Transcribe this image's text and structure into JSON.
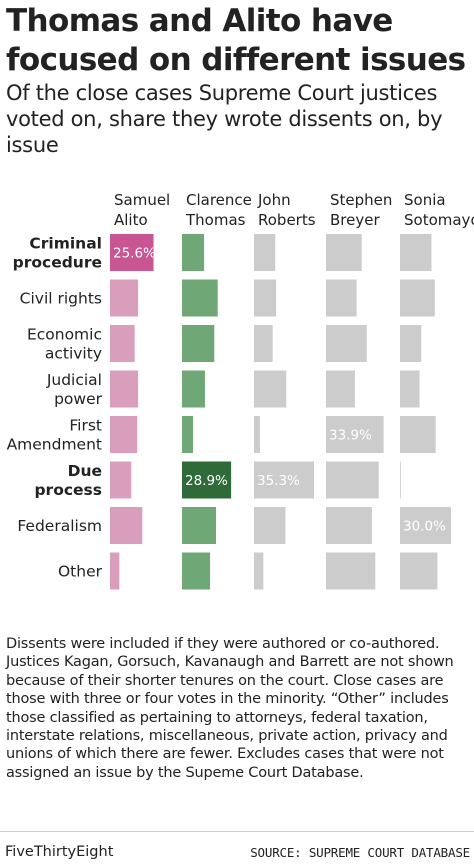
{
  "title": "Thomas and Alito have focused on different issues",
  "subtitle": "Of the close cases Supreme Court justices voted on, share they wrote dissents on, by issue",
  "chart_data": {
    "type": "bar",
    "units": "%",
    "justices": [
      {
        "name": [
          "Samuel",
          "Alito"
        ],
        "color": "#d99ebc",
        "highlight_color": "#c95693"
      },
      {
        "name": [
          "Clarence",
          "Thomas"
        ],
        "color": "#6fa777",
        "highlight_color": "#2f6b38"
      },
      {
        "name": [
          "John",
          "Roberts"
        ],
        "color": "#cccccc",
        "highlight_color": "#cccccc"
      },
      {
        "name": [
          "Stephen",
          "Breyer"
        ],
        "color": "#cccccc",
        "highlight_color": "#cccccc"
      },
      {
        "name": [
          "Sonia",
          "Sotomayor"
        ],
        "color": "#cccccc",
        "highlight_color": "#cccccc"
      }
    ],
    "issues": [
      {
        "label": [
          "Criminal",
          "procedure"
        ],
        "bold": true
      },
      {
        "label": [
          "Civil rights"
        ],
        "bold": false
      },
      {
        "label": [
          "Economic",
          "activity"
        ],
        "bold": false
      },
      {
        "label": [
          "Judicial",
          "power"
        ],
        "bold": false
      },
      {
        "label": [
          "First",
          "Amendment"
        ],
        "bold": false
      },
      {
        "label": [
          "Due",
          "process"
        ],
        "bold": true
      },
      {
        "label": [
          "Federalism"
        ],
        "bold": false
      },
      {
        "label": [
          "Other"
        ],
        "bold": false
      }
    ],
    "series": [
      {
        "name": "Samuel Alito",
        "values": [
          25.6,
          16.5,
          14.5,
          16.5,
          16.0,
          12.5,
          19.0,
          5.5
        ]
      },
      {
        "name": "Clarence Thomas",
        "values": [
          13.0,
          21.0,
          19.0,
          13.5,
          6.5,
          28.9,
          20.0,
          16.5
        ]
      },
      {
        "name": "John Roberts",
        "values": [
          12.5,
          13.0,
          11.0,
          19.0,
          3.5,
          35.3,
          18.5,
          5.5
        ]
      },
      {
        "name": "Stephen Breyer",
        "values": [
          21.0,
          18.0,
          24.0,
          17.0,
          33.9,
          31.0,
          27.0,
          29.0
        ]
      },
      {
        "name": "Sonia Sotomayor",
        "values": [
          18.5,
          20.5,
          12.5,
          11.5,
          21.0,
          0.5,
          30.0,
          22.0
        ]
      }
    ],
    "labeled": [
      {
        "series": 0,
        "issue": 0,
        "text": "25.6%",
        "highlight": true
      },
      {
        "series": 1,
        "issue": 5,
        "text": "28.9%",
        "highlight": true
      },
      {
        "series": 2,
        "issue": 5,
        "text": "35.3%",
        "highlight": false
      },
      {
        "series": 3,
        "issue": 4,
        "text": "33.9%",
        "highlight": false
      },
      {
        "series": 4,
        "issue": 6,
        "text": "30.0%",
        "highlight": false
      }
    ],
    "xlim": [
      0,
      40
    ]
  },
  "footnote": "Dissents were included if they were authored or co-authored. Justices Kagan, Gorsuch, Kavanaugh and Barrett are not shown because of their shorter tenures on the court. Close cases are those with three or four votes in the minority. “Other” includes those classified as pertaining to attorneys, federal taxation, interstate relations, miscellaneous, private action, privacy and unions of which there are fewer. Excludes cases that were not assigned an issue by the Supeme Court Database.",
  "footer": {
    "brand": "FiveThirtyEight",
    "source": "SOURCE: SUPREME COURT DATABASE"
  }
}
